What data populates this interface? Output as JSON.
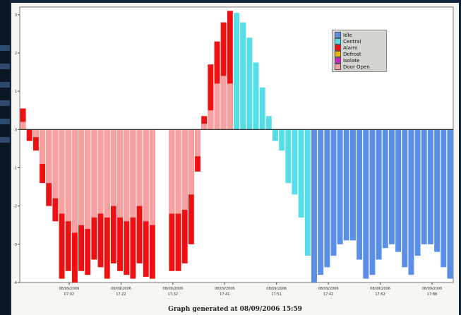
{
  "chart_data": {
    "type": "bar",
    "stacked": true,
    "ylim": [
      -4,
      3.2
    ],
    "yticks": [
      3,
      2,
      1,
      0,
      -1,
      -2,
      -3,
      -4
    ],
    "ytick_labels": [
      "3",
      "2",
      "1",
      "0",
      "-1",
      "-2",
      "-3",
      "-4"
    ],
    "xtick_labels": [
      {
        "date": "08/09/2006",
        "time": "07:02"
      },
      {
        "date": "08/09/2006",
        "time": "17:22"
      },
      {
        "date": "08/09/2006",
        "time": "17:32"
      },
      {
        "date": "08/09/2006",
        "time": "17:41"
      },
      {
        "date": "08/09/2006",
        "time": "17:51"
      },
      {
        "date": "08/09/2006",
        "time": "17:42"
      },
      {
        "date": "08/09/2006",
        "time": "17:62"
      },
      {
        "date": "08/09/2006",
        "time": "17:88"
      }
    ],
    "legend": {
      "placement": "top-right",
      "entries": [
        {
          "label": "Idle",
          "color": "#5b8ee8"
        },
        {
          "label": "Central",
          "color": "#55dde8"
        },
        {
          "label": "Alarm",
          "color": "#ee1111"
        },
        {
          "label": "Defrost",
          "color": "#f0b400"
        },
        {
          "label": "Isolate",
          "color": "#cc22cc"
        },
        {
          "label": "Door Open",
          "color": "#f6a0a0"
        }
      ]
    },
    "series_colors": {
      "Alarm": "#ee1111",
      "DoorOpen": "#f6a0a0",
      "Central": "#55dde8",
      "Idle": "#5b8ee8"
    },
    "bars": [
      {
        "a": 0.55,
        "d": 0.2
      },
      {
        "a": -0.3,
        "d": 0
      },
      {
        "a": -0.55,
        "d": -0.2
      },
      {
        "a": -1.4,
        "d": -0.9
      },
      {
        "a": -2.0,
        "d": -1.4
      },
      {
        "a": -2.4,
        "d": -1.8
      },
      {
        "a": -3.9,
        "d": -2.2
      },
      {
        "a": -3.7,
        "d": -2.4
      },
      {
        "a": -4.0,
        "d": -2.7
      },
      {
        "a": -3.7,
        "d": -2.5
      },
      {
        "a": -3.8,
        "d": -2.6
      },
      {
        "a": -3.4,
        "d": -2.3
      },
      {
        "a": -3.6,
        "d": -2.2
      },
      {
        "a": -3.9,
        "d": -2.3
      },
      {
        "a": -3.5,
        "d": -2.0
      },
      {
        "a": -3.7,
        "d": -2.3
      },
      {
        "a": -3.8,
        "d": -2.4
      },
      {
        "a": -3.9,
        "d": -2.3
      },
      {
        "a": -3.5,
        "d": -2.0
      },
      {
        "a": -3.85,
        "d": -2.4
      },
      {
        "a": -3.9,
        "d": -2.5
      },
      {
        "a": 0,
        "d": 0
      },
      {
        "a": 0,
        "d": 0
      },
      {
        "a": -3.7,
        "d": -2.2
      },
      {
        "a": -3.7,
        "d": -2.2
      },
      {
        "a": -3.5,
        "d": -2.1
      },
      {
        "a": -3.0,
        "d": -1.7
      },
      {
        "a": -1.1,
        "d": -0.7
      },
      {
        "a": 0.35,
        "d": 0.15
      },
      {
        "a": 1.7,
        "d": 0.5
      },
      {
        "a": 2.3,
        "d": 1.2
      },
      {
        "a": 2.8,
        "d": 1.4
      },
      {
        "a": 3.1,
        "d": 1.2
      },
      {
        "c": 3.05
      },
      {
        "c": 2.8
      },
      {
        "c": 2.4
      },
      {
        "c": 1.75
      },
      {
        "c": 1.1
      },
      {
        "c": 0.35
      },
      {
        "c": -0.3
      },
      {
        "c": -0.55
      },
      {
        "c": -1.4
      },
      {
        "c": -1.7
      },
      {
        "c": -2.3
      },
      {
        "c": -3.3
      },
      {
        "i": -4.0
      },
      {
        "i": -3.8
      },
      {
        "i": -3.6
      },
      {
        "i": -3.3
      },
      {
        "i": -3.0
      },
      {
        "i": -2.9
      },
      {
        "i": -2.9
      },
      {
        "i": -3.4
      },
      {
        "i": -3.9
      },
      {
        "i": -3.8
      },
      {
        "i": -3.4
      },
      {
        "i": -3.1
      },
      {
        "i": -3.0
      },
      {
        "i": -3.2
      },
      {
        "i": -3.6
      },
      {
        "i": -3.8
      },
      {
        "i": -3.3
      },
      {
        "i": -3.0
      },
      {
        "i": -3.0
      },
      {
        "i": -3.2
      },
      {
        "i": -3.6
      },
      {
        "i": -3.9
      }
    ]
  },
  "footer": {
    "caption": "Graph generated at 08/09/2006 15:59"
  }
}
